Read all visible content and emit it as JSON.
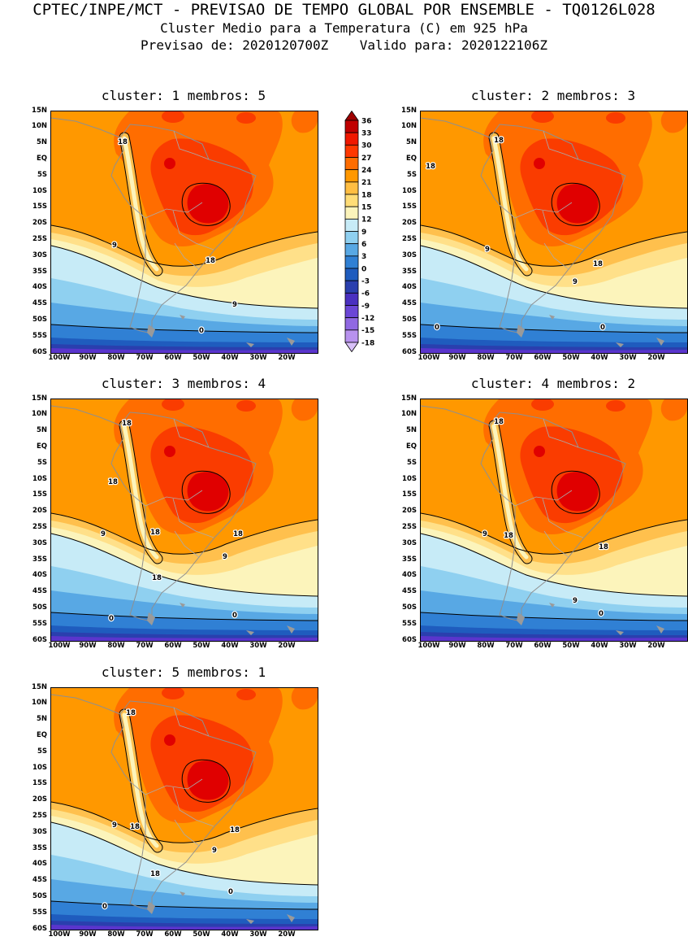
{
  "header": {
    "line1": "CPTEC/INPE/MCT - PREVISAO DE TEMPO GLOBAL POR ENSEMBLE - TQ0126L028",
    "line2": "Cluster Medio para a Temperatura (C) em 925 hPa",
    "line3": "Previsao de: 2020120700Z    Valido para: 2020122106Z"
  },
  "chart_data": {
    "type": "heatmap",
    "title": "Cluster Medio para a Temperatura (C) em 925 hPa",
    "variable": "Temperatura (C)",
    "level": "925 hPa",
    "model": "TQ0126L028",
    "forecast_init": "2020120700Z",
    "forecast_valid": "2020122106Z",
    "field_description": "Filled temperature contours over South America: 24-33C core over tropical Brazil, 18C band along the Andes, temperatures decreasing southward through 9C near 30-45S and 0C near 50S, below -6C toward 60S.",
    "contour_interval_filled": 3,
    "contour_levels_labeled": [
      18,
      9,
      0
    ],
    "x_ticks": [
      "100W",
      "90W",
      "80W",
      "70W",
      "60W",
      "50W",
      "40W",
      "30W",
      "20W"
    ],
    "y_ticks": [
      "15N",
      "10N",
      "5N",
      "EQ",
      "5S",
      "10S",
      "15S",
      "20S",
      "25S",
      "30S",
      "35S",
      "40S",
      "45S",
      "50S",
      "55S",
      "60S"
    ],
    "colorbar": {
      "levels": [
        36,
        33,
        30,
        27,
        24,
        21,
        18,
        15,
        12,
        9,
        6,
        3,
        0,
        -3,
        -6,
        -9,
        -12,
        -15,
        -18
      ],
      "colors": [
        "#9e0000",
        "#c00000",
        "#f01800",
        "#ff3800",
        "#ff6d00",
        "#ff9800",
        "#ffbe42",
        "#ffdd77",
        "#fcf4bb",
        "#c7ebf7",
        "#8fd0f0",
        "#58a8e4",
        "#3080d4",
        "#1f5cbe",
        "#2a3fae",
        "#4a30c0",
        "#6b46d6",
        "#9068e2",
        "#b892ee",
        "#d8c0f8"
      ]
    },
    "panels": [
      {
        "cluster": "1",
        "membros": "5",
        "title": "cluster: 1   membros: 5",
        "labels": [
          {
            "text": "18",
            "x": 88,
            "y": 40
          },
          {
            "text": "18",
            "x": 196,
            "y": 186
          },
          {
            "text": "9",
            "x": 78,
            "y": 167
          },
          {
            "text": "9",
            "x": 226,
            "y": 240
          },
          {
            "text": "0",
            "x": 185,
            "y": 272
          }
        ]
      },
      {
        "cluster": "2",
        "membros": "3",
        "title": "cluster: 2   membros: 3",
        "labels": [
          {
            "text": "18",
            "x": 96,
            "y": 38
          },
          {
            "text": "18",
            "x": 12,
            "y": 70
          },
          {
            "text": "18",
            "x": 218,
            "y": 190
          },
          {
            "text": "9",
            "x": 82,
            "y": 172
          },
          {
            "text": "9",
            "x": 190,
            "y": 212
          },
          {
            "text": "0",
            "x": 20,
            "y": 268
          },
          {
            "text": "0",
            "x": 224,
            "y": 268
          }
        ]
      },
      {
        "cluster": "3",
        "membros": "4",
        "title": "cluster: 3   membros: 4",
        "labels": [
          {
            "text": "18",
            "x": 93,
            "y": 32
          },
          {
            "text": "18",
            "x": 76,
            "y": 104
          },
          {
            "text": "9",
            "x": 64,
            "y": 168
          },
          {
            "text": "18",
            "x": 128,
            "y": 166
          },
          {
            "text": "18",
            "x": 230,
            "y": 168
          },
          {
            "text": "9",
            "x": 214,
            "y": 196
          },
          {
            "text": "18",
            "x": 130,
            "y": 222
          },
          {
            "text": "0",
            "x": 74,
            "y": 272
          },
          {
            "text": "0",
            "x": 226,
            "y": 268
          }
        ]
      },
      {
        "cluster": "4",
        "membros": "2",
        "title": "cluster: 4   membros: 2",
        "labels": [
          {
            "text": "18",
            "x": 96,
            "y": 30
          },
          {
            "text": "9",
            "x": 79,
            "y": 168
          },
          {
            "text": "18",
            "x": 108,
            "y": 170
          },
          {
            "text": "18",
            "x": 225,
            "y": 184
          },
          {
            "text": "9",
            "x": 190,
            "y": 250
          },
          {
            "text": "0",
            "x": 222,
            "y": 266
          }
        ]
      },
      {
        "cluster": "5",
        "membros": "1",
        "title": "cluster: 5   membros: 1",
        "labels": [
          {
            "text": "18",
            "x": 98,
            "y": 33
          },
          {
            "text": "9",
            "x": 78,
            "y": 171
          },
          {
            "text": "18",
            "x": 103,
            "y": 173
          },
          {
            "text": "18",
            "x": 226,
            "y": 177
          },
          {
            "text": "9",
            "x": 201,
            "y": 202
          },
          {
            "text": "18",
            "x": 128,
            "y": 231
          },
          {
            "text": "0",
            "x": 221,
            "y": 253
          },
          {
            "text": "0",
            "x": 66,
            "y": 271
          }
        ]
      }
    ]
  }
}
